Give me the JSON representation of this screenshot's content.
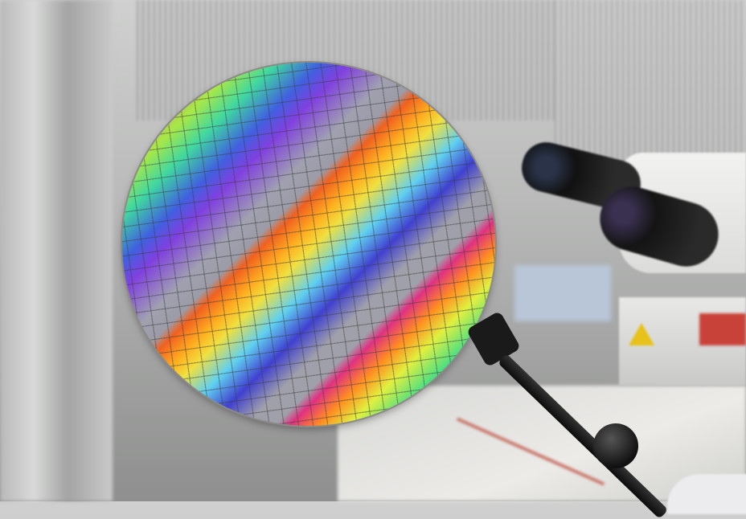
{
  "scene": {
    "subject": "wafer",
    "colors": {
      "background": "#b9bab9",
      "wafer_edge": "#b8a060",
      "tweezers": "#1a1a1a",
      "warning_sign": "#e8c21a"
    }
  }
}
